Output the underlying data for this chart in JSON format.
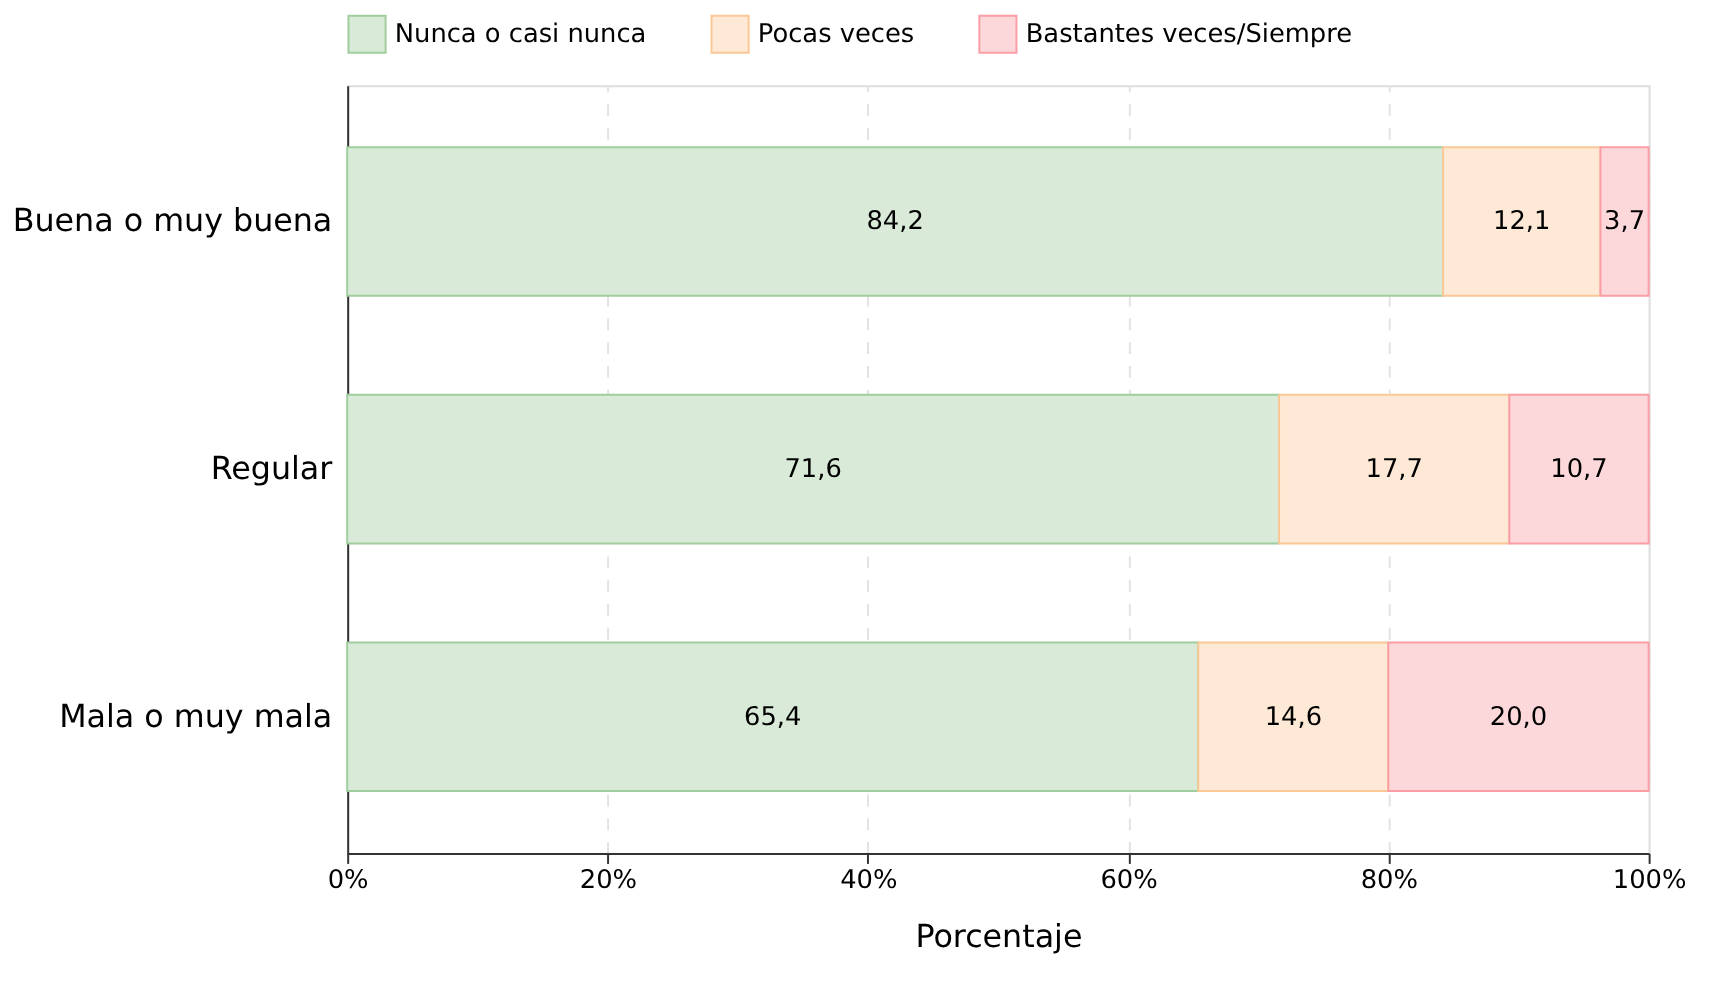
{
  "chart_data": {
    "type": "bar",
    "orientation": "horizontal",
    "stacked": true,
    "xlabel": "Porcentaje",
    "categories": [
      "Buena o muy buena",
      "Regular",
      "Mala o muy mala"
    ],
    "series": [
      {
        "name": "Nunca o casi nunca",
        "color": "#d9ebd8",
        "values": [
          84.2,
          71.6,
          65.4
        ],
        "value_labels": [
          "84,2",
          "71,6",
          "65,4"
        ]
      },
      {
        "name": "Pocas veces",
        "color": "#fde9d5",
        "values": [
          12.1,
          17.7,
          14.6
        ],
        "value_labels": [
          "12,1",
          "17,7",
          "14,6"
        ]
      },
      {
        "name": "Bastantes veces/Siempre",
        "color": "#fdd8db",
        "values": [
          3.7,
          10.7,
          20.0
        ],
        "value_labels": [
          "3,7",
          "10,7",
          "20,0"
        ]
      }
    ],
    "xlim": [
      0,
      100
    ],
    "xticks": [
      {
        "value": 0,
        "label": "0%"
      },
      {
        "value": 20,
        "label": "20%"
      },
      {
        "value": 40,
        "label": "40%"
      },
      {
        "value": 60,
        "label": "60%"
      },
      {
        "value": 80,
        "label": "80%"
      },
      {
        "value": 100,
        "label": "100%"
      }
    ],
    "grid": "x",
    "legend": "top"
  }
}
